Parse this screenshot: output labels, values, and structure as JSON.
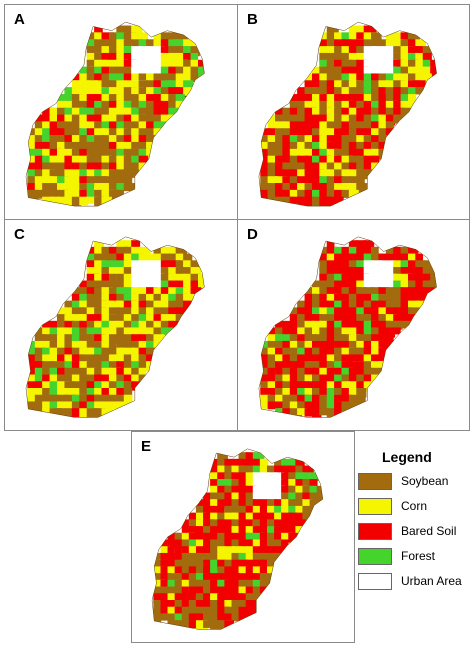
{
  "panels": [
    {
      "letter": "A",
      "mix": [
        0.38,
        0.3,
        0.18,
        0.14,
        0.0
      ]
    },
    {
      "letter": "B",
      "mix": [
        0.34,
        0.24,
        0.34,
        0.08,
        0.0
      ]
    },
    {
      "letter": "C",
      "mix": [
        0.4,
        0.32,
        0.14,
        0.14,
        0.0
      ]
    },
    {
      "letter": "D",
      "mix": [
        0.3,
        0.14,
        0.5,
        0.06,
        0.0
      ]
    },
    {
      "letter": "E",
      "mix": [
        0.32,
        0.16,
        0.46,
        0.06,
        0.0
      ]
    }
  ],
  "legend": {
    "title": "Legend",
    "items": [
      {
        "label": "Soybean",
        "color": "#a26c0e"
      },
      {
        "label": "Corn",
        "color": "#f5f500"
      },
      {
        "label": "Bared Soil",
        "color": "#f20000"
      },
      {
        "label": "Forest",
        "color": "#45d42c"
      },
      {
        "label": "Urban Area",
        "color": "#ffffff"
      }
    ]
  }
}
